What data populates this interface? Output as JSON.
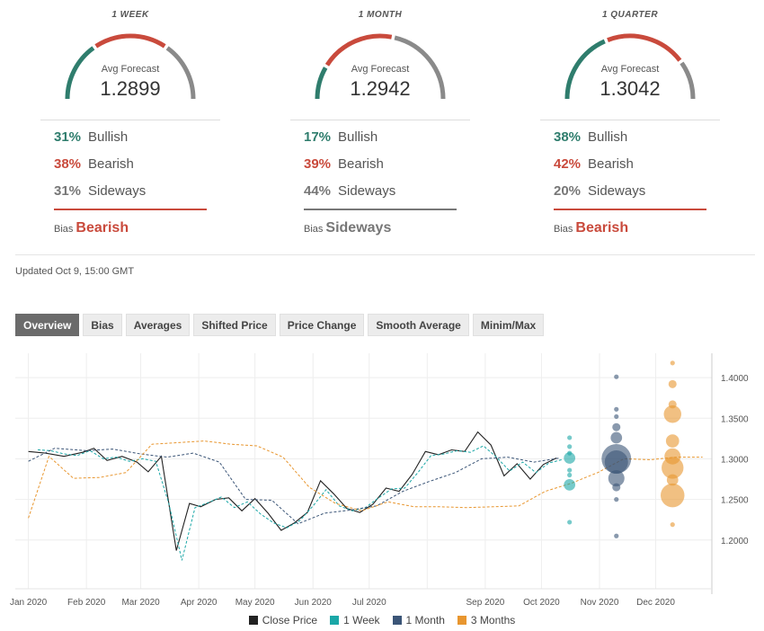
{
  "forecasts": [
    {
      "period": "1 WEEK",
      "avg_label": "Avg Forecast",
      "avg_value": "1.2899",
      "bullish_pct": "31%",
      "bullish_label": "Bullish",
      "bearish_pct": "38%",
      "bearish_label": "Bearish",
      "sideways_pct": "31%",
      "sideways_label": "Sideways",
      "bias_label": "Bias",
      "bias_value": "Bearish",
      "bias_color": "#c94a3c",
      "gauge": {
        "bullish": 0.31,
        "bearish": 0.38,
        "sideways": 0.31
      }
    },
    {
      "period": "1 MONTH",
      "avg_label": "Avg Forecast",
      "avg_value": "1.2942",
      "bullish_pct": "17%",
      "bullish_label": "Bullish",
      "bearish_pct": "39%",
      "bearish_label": "Bearish",
      "sideways_pct": "44%",
      "sideways_label": "Sideways",
      "bias_label": "Bias",
      "bias_value": "Sideways",
      "bias_color": "#777777",
      "gauge": {
        "bullish": 0.17,
        "bearish": 0.39,
        "sideways": 0.44
      }
    },
    {
      "period": "1 QUARTER",
      "avg_label": "Avg Forecast",
      "avg_value": "1.3042",
      "bullish_pct": "38%",
      "bullish_label": "Bullish",
      "bearish_pct": "42%",
      "bearish_label": "Bearish",
      "sideways_pct": "20%",
      "sideways_label": "Sideways",
      "bias_label": "Bias",
      "bias_value": "Bearish",
      "bias_color": "#c94a3c",
      "gauge": {
        "bullish": 0.38,
        "bearish": 0.42,
        "sideways": 0.2
      }
    }
  ],
  "colors": {
    "bullish": "#2f7d6d",
    "bearish": "#c94a3c",
    "sideways": "#8a8a8a"
  },
  "updated": "Updated Oct 9, 15:00 GMT",
  "tabs": [
    "Overview",
    "Bias",
    "Averages",
    "Shifted Price",
    "Price Change",
    "Smooth Average",
    "Minim/Max"
  ],
  "active_tab": "Overview",
  "chart_data": {
    "type": "line",
    "x_ticks": [
      "Jan 2020",
      "Feb 2020",
      "Mar 2020",
      "Apr 2020",
      "May 2020",
      "Jun 2020",
      "Jul 2020",
      "Sep 2020",
      "Oct 2020",
      "Nov 2020",
      "Dec 2020"
    ],
    "y_ticks": [
      "1.2000",
      "1.2500",
      "1.3000",
      "1.3500",
      "1.4000"
    ],
    "ylim": [
      1.14,
      1.43
    ],
    "legend": [
      {
        "name": "Close Price",
        "color": "#222222"
      },
      {
        "name": "1 Week",
        "color": "#1aa7a7"
      },
      {
        "name": "1 Month",
        "color": "#3b5577"
      },
      {
        "name": "3 Months",
        "color": "#e8962f"
      }
    ],
    "series": [
      {
        "name": "Close Price",
        "color": "#222222",
        "x": [
          "2020-01-01",
          "2020-01-10",
          "2020-01-20",
          "2020-01-30",
          "2020-02-05",
          "2020-02-12",
          "2020-02-20",
          "2020-02-28",
          "2020-03-05",
          "2020-03-12",
          "2020-03-20",
          "2020-03-27",
          "2020-04-02",
          "2020-04-10",
          "2020-04-17",
          "2020-04-24",
          "2020-05-01",
          "2020-05-08",
          "2020-05-15",
          "2020-05-22",
          "2020-05-29",
          "2020-06-05",
          "2020-06-12",
          "2020-06-19",
          "2020-06-26",
          "2020-07-03",
          "2020-07-10",
          "2020-07-17",
          "2020-07-24",
          "2020-07-31",
          "2020-08-07",
          "2020-08-14",
          "2020-08-21",
          "2020-08-28",
          "2020-09-04",
          "2020-09-11",
          "2020-09-18",
          "2020-09-25",
          "2020-10-02",
          "2020-10-09"
        ],
        "y": [
          1.309,
          1.307,
          1.303,
          1.308,
          1.313,
          1.298,
          1.303,
          1.296,
          1.284,
          1.303,
          1.187,
          1.245,
          1.241,
          1.25,
          1.252,
          1.236,
          1.251,
          1.233,
          1.212,
          1.221,
          1.234,
          1.273,
          1.257,
          1.239,
          1.234,
          1.244,
          1.264,
          1.26,
          1.281,
          1.309,
          1.305,
          1.311,
          1.309,
          1.333,
          1.317,
          1.279,
          1.294,
          1.275,
          1.293,
          1.301
        ]
      },
      {
        "name": "1 Week",
        "color": "#1aa7a7",
        "x": [
          "2020-01-06",
          "2020-01-13",
          "2020-01-20",
          "2020-01-27",
          "2020-02-03",
          "2020-02-10",
          "2020-02-17",
          "2020-02-24",
          "2020-03-02",
          "2020-03-09",
          "2020-03-16",
          "2020-03-23",
          "2020-03-30",
          "2020-04-06",
          "2020-04-13",
          "2020-04-20",
          "2020-04-27",
          "2020-05-04",
          "2020-05-11",
          "2020-05-18",
          "2020-05-25",
          "2020-06-01",
          "2020-06-08",
          "2020-06-15",
          "2020-06-22",
          "2020-06-29",
          "2020-07-06",
          "2020-07-13",
          "2020-07-20",
          "2020-07-27",
          "2020-08-03",
          "2020-08-10",
          "2020-08-17",
          "2020-08-24",
          "2020-08-31",
          "2020-09-07",
          "2020-09-14",
          "2020-09-21",
          "2020-09-28",
          "2020-10-05",
          "2020-10-12"
        ],
        "y": [
          1.311,
          1.31,
          1.306,
          1.304,
          1.31,
          1.3,
          1.302,
          1.297,
          1.3,
          1.297,
          1.245,
          1.175,
          1.24,
          1.246,
          1.253,
          1.24,
          1.247,
          1.232,
          1.221,
          1.215,
          1.224,
          1.242,
          1.262,
          1.242,
          1.236,
          1.24,
          1.252,
          1.263,
          1.264,
          1.283,
          1.304,
          1.306,
          1.31,
          1.308,
          1.316,
          1.302,
          1.285,
          1.296,
          1.283,
          1.295,
          1.299
        ]
      },
      {
        "name": "1 Month",
        "color": "#3b5577",
        "x": [
          "2020-01-01",
          "2020-01-15",
          "2020-02-01",
          "2020-02-15",
          "2020-03-01",
          "2020-03-15",
          "2020-03-29",
          "2020-04-12",
          "2020-04-26",
          "2020-05-10",
          "2020-05-24",
          "2020-06-07",
          "2020-06-21",
          "2020-07-05",
          "2020-07-19",
          "2020-08-02",
          "2020-08-16",
          "2020-08-30",
          "2020-09-13",
          "2020-09-27",
          "2020-10-11"
        ],
        "y": [
          1.297,
          1.313,
          1.31,
          1.312,
          1.306,
          1.302,
          1.307,
          1.296,
          1.25,
          1.249,
          1.22,
          1.233,
          1.237,
          1.242,
          1.26,
          1.272,
          1.283,
          1.3,
          1.302,
          1.296,
          1.301
        ]
      },
      {
        "name": "3 Months",
        "color": "#e8962f",
        "x": [
          "2020-01-01",
          "2020-01-12",
          "2020-01-25",
          "2020-02-08",
          "2020-02-22",
          "2020-03-07",
          "2020-03-21",
          "2020-04-04",
          "2020-04-18",
          "2020-05-02",
          "2020-05-16",
          "2020-05-30",
          "2020-06-13",
          "2020-06-27",
          "2020-07-11",
          "2020-07-25",
          "2020-08-08",
          "2020-08-22",
          "2020-09-05",
          "2020-09-19",
          "2020-10-03",
          "2020-10-17",
          "2020-10-31",
          "2020-11-14",
          "2020-11-28",
          "2020-12-12",
          "2020-12-26"
        ],
        "y": [
          1.227,
          1.303,
          1.276,
          1.277,
          1.283,
          1.318,
          1.32,
          1.322,
          1.318,
          1.316,
          1.302,
          1.265,
          1.245,
          1.236,
          1.247,
          1.241,
          1.241,
          1.24,
          1.241,
          1.242,
          1.26,
          1.27,
          1.283,
          1.3,
          1.299,
          1.302,
          1.302
        ]
      }
    ],
    "forecast_bubbles": [
      {
        "series": "1 Week",
        "x": "2020-10-16",
        "points": [
          {
            "y": 1.326,
            "weight": 1
          },
          {
            "y": 1.315,
            "weight": 1
          },
          {
            "y": 1.307,
            "weight": 1
          },
          {
            "y": 1.301,
            "weight": 6
          },
          {
            "y": 1.286,
            "weight": 1
          },
          {
            "y": 1.28,
            "weight": 1
          },
          {
            "y": 1.268,
            "weight": 6
          },
          {
            "y": 1.222,
            "weight": 1
          }
        ]
      },
      {
        "series": "1 Month",
        "x": "2020-11-10",
        "points": [
          {
            "y": 1.401,
            "weight": 1
          },
          {
            "y": 1.361,
            "weight": 1
          },
          {
            "y": 1.352,
            "weight": 1
          },
          {
            "y": 1.339,
            "weight": 3
          },
          {
            "y": 1.326,
            "weight": 6
          },
          {
            "y": 1.3,
            "weight": 40
          },
          {
            "y": 1.296,
            "weight": 25
          },
          {
            "y": 1.276,
            "weight": 12
          },
          {
            "y": 1.265,
            "weight": 3
          },
          {
            "y": 1.25,
            "weight": 1
          },
          {
            "y": 1.205,
            "weight": 1
          }
        ]
      },
      {
        "series": "3 Months",
        "x": "2020-12-10",
        "points": [
          {
            "y": 1.418,
            "weight": 1
          },
          {
            "y": 1.392,
            "weight": 3
          },
          {
            "y": 1.367,
            "weight": 3
          },
          {
            "y": 1.355,
            "weight": 14
          },
          {
            "y": 1.322,
            "weight": 8
          },
          {
            "y": 1.303,
            "weight": 12
          },
          {
            "y": 1.289,
            "weight": 22
          },
          {
            "y": 1.274,
            "weight": 6
          },
          {
            "y": 1.255,
            "weight": 26
          },
          {
            "y": 1.219,
            "weight": 1
          }
        ]
      }
    ]
  }
}
